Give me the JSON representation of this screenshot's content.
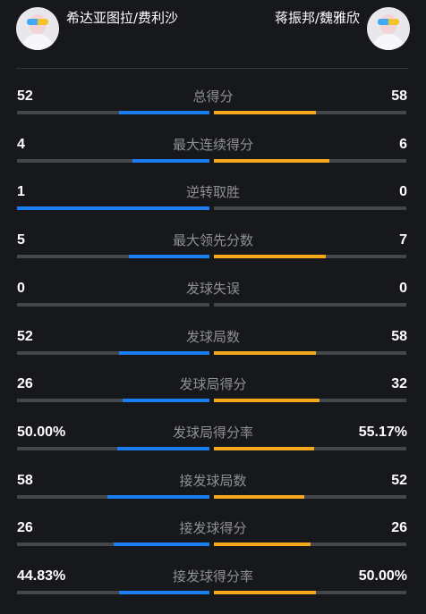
{
  "header": {
    "left_player": {
      "name": "希达亚图拉/费利沙",
      "avatar_icon": "avatar-icon"
    },
    "right_player": {
      "name": "蒋振邦/魏雅欣",
      "avatar_icon": "avatar-icon"
    }
  },
  "colors": {
    "left_bar": "#1a7ef0",
    "right_bar": "#f5a81c",
    "track": "#44464b",
    "label": "#8e9095",
    "background": "#17181c"
  },
  "stats": [
    {
      "label": "总得分",
      "left": "52",
      "right": "58",
      "left_fraction": 0.47,
      "right_fraction": 0.53
    },
    {
      "label": "最大连续得分",
      "left": "4",
      "right": "6",
      "left_fraction": 0.4,
      "right_fraction": 0.6
    },
    {
      "label": "逆转取胜",
      "left": "1",
      "right": "0",
      "left_fraction": 1.0,
      "right_fraction": 0.0
    },
    {
      "label": "最大领先分数",
      "left": "5",
      "right": "7",
      "left_fraction": 0.42,
      "right_fraction": 0.58
    },
    {
      "label": "发球失误",
      "left": "0",
      "right": "0",
      "left_fraction": 0.0,
      "right_fraction": 0.0
    },
    {
      "label": "发球局数",
      "left": "52",
      "right": "58",
      "left_fraction": 0.47,
      "right_fraction": 0.53
    },
    {
      "label": "发球局得分",
      "left": "26",
      "right": "32",
      "left_fraction": 0.45,
      "right_fraction": 0.55
    },
    {
      "label": "发球局得分率",
      "left": "50.00%",
      "right": "55.17%",
      "left_fraction": 0.48,
      "right_fraction": 0.52
    },
    {
      "label": "接发球局数",
      "left": "58",
      "right": "52",
      "left_fraction": 0.53,
      "right_fraction": 0.47
    },
    {
      "label": "接发球得分",
      "left": "26",
      "right": "26",
      "left_fraction": 0.5,
      "right_fraction": 0.5
    },
    {
      "label": "接发球得分率",
      "left": "44.83%",
      "right": "50.00%",
      "left_fraction": 0.47,
      "right_fraction": 0.53
    }
  ]
}
